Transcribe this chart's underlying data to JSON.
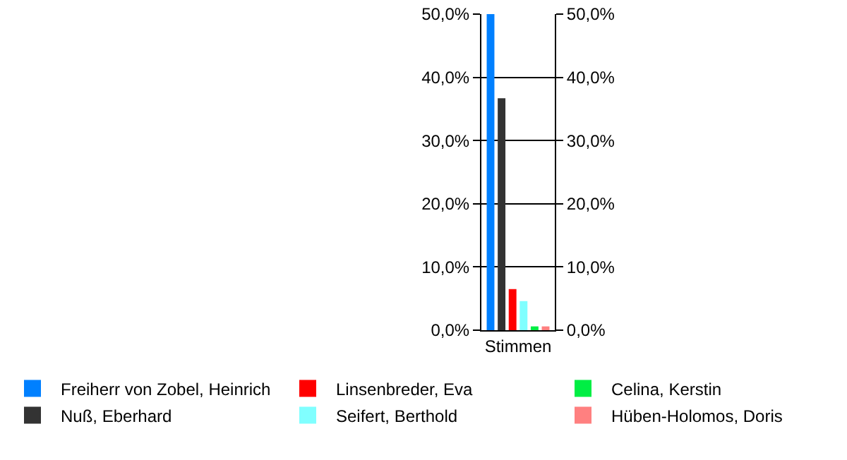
{
  "chart_data": {
    "type": "bar",
    "categories": [
      "Stimmen"
    ],
    "series": [
      {
        "name": "Freiherr von Zobel, Heinrich",
        "color": "#0080ff",
        "values": [
          50.0
        ]
      },
      {
        "name": "Nuß, Eberhard",
        "color": "#333333",
        "values": [
          36.7
        ]
      },
      {
        "name": "Linsenbreder, Eva",
        "color": "#ff0000",
        "values": [
          6.5
        ]
      },
      {
        "name": "Seifert, Berthold",
        "color": "#80ffff",
        "values": [
          4.6
        ]
      },
      {
        "name": "Celina, Kerstin",
        "color": "#00ee44",
        "values": [
          0.6
        ]
      },
      {
        "name": "Hüben-Holomos, Doris",
        "color": "#ff8080",
        "values": [
          0.6
        ]
      }
    ],
    "ylim": [
      0,
      50
    ],
    "yticks": [
      {
        "value": 0,
        "label": "0,0%"
      },
      {
        "value": 10,
        "label": "10,0%"
      },
      {
        "value": 20,
        "label": "20,0%"
      },
      {
        "value": 30,
        "label": "30,0%"
      },
      {
        "value": 40,
        "label": "40,0%"
      },
      {
        "value": 50,
        "label": "50,0%"
      }
    ],
    "y2lim": [
      0,
      50
    ],
    "y2ticks": [
      {
        "value": 0,
        "label": "0,0%"
      },
      {
        "value": 10,
        "label": "10,0%"
      },
      {
        "value": 20,
        "label": "20,0%"
      },
      {
        "value": 30,
        "label": "30,0%"
      },
      {
        "value": 40,
        "label": "40,0%"
      },
      {
        "value": 50,
        "label": "50,0%"
      }
    ],
    "grid": "y",
    "legend": "bottom"
  }
}
